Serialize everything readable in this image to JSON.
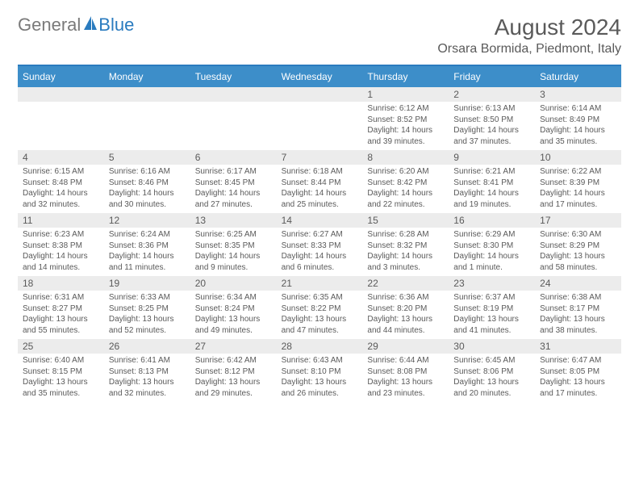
{
  "colors": {
    "brand_blue": "#2a7bbf",
    "header_blue": "#3d8ec9",
    "text_gray": "#5a5a5a",
    "logo_gray": "#7a7a7a",
    "daynum_bg": "#ececec",
    "white": "#ffffff"
  },
  "logo": {
    "part1": "General",
    "part2": "Blue"
  },
  "title": "August 2024",
  "location": "Orsara Bormida, Piedmont, Italy",
  "weekday_labels": [
    "Sunday",
    "Monday",
    "Tuesday",
    "Wednesday",
    "Thursday",
    "Friday",
    "Saturday"
  ],
  "calendar": {
    "type": "table",
    "cell_font_size_pt": 8,
    "daynum_font_size_pt": 9,
    "weekday_font_size_pt": 9,
    "weeks": [
      [
        {
          "num": "",
          "lines": []
        },
        {
          "num": "",
          "lines": []
        },
        {
          "num": "",
          "lines": []
        },
        {
          "num": "",
          "lines": []
        },
        {
          "num": "1",
          "lines": [
            "Sunrise: 6:12 AM",
            "Sunset: 8:52 PM",
            "Daylight: 14 hours and 39 minutes."
          ]
        },
        {
          "num": "2",
          "lines": [
            "Sunrise: 6:13 AM",
            "Sunset: 8:50 PM",
            "Daylight: 14 hours and 37 minutes."
          ]
        },
        {
          "num": "3",
          "lines": [
            "Sunrise: 6:14 AM",
            "Sunset: 8:49 PM",
            "Daylight: 14 hours and 35 minutes."
          ]
        }
      ],
      [
        {
          "num": "4",
          "lines": [
            "Sunrise: 6:15 AM",
            "Sunset: 8:48 PM",
            "Daylight: 14 hours and 32 minutes."
          ]
        },
        {
          "num": "5",
          "lines": [
            "Sunrise: 6:16 AM",
            "Sunset: 8:46 PM",
            "Daylight: 14 hours and 30 minutes."
          ]
        },
        {
          "num": "6",
          "lines": [
            "Sunrise: 6:17 AM",
            "Sunset: 8:45 PM",
            "Daylight: 14 hours and 27 minutes."
          ]
        },
        {
          "num": "7",
          "lines": [
            "Sunrise: 6:18 AM",
            "Sunset: 8:44 PM",
            "Daylight: 14 hours and 25 minutes."
          ]
        },
        {
          "num": "8",
          "lines": [
            "Sunrise: 6:20 AM",
            "Sunset: 8:42 PM",
            "Daylight: 14 hours and 22 minutes."
          ]
        },
        {
          "num": "9",
          "lines": [
            "Sunrise: 6:21 AM",
            "Sunset: 8:41 PM",
            "Daylight: 14 hours and 19 minutes."
          ]
        },
        {
          "num": "10",
          "lines": [
            "Sunrise: 6:22 AM",
            "Sunset: 8:39 PM",
            "Daylight: 14 hours and 17 minutes."
          ]
        }
      ],
      [
        {
          "num": "11",
          "lines": [
            "Sunrise: 6:23 AM",
            "Sunset: 8:38 PM",
            "Daylight: 14 hours and 14 minutes."
          ]
        },
        {
          "num": "12",
          "lines": [
            "Sunrise: 6:24 AM",
            "Sunset: 8:36 PM",
            "Daylight: 14 hours and 11 minutes."
          ]
        },
        {
          "num": "13",
          "lines": [
            "Sunrise: 6:25 AM",
            "Sunset: 8:35 PM",
            "Daylight: 14 hours and 9 minutes."
          ]
        },
        {
          "num": "14",
          "lines": [
            "Sunrise: 6:27 AM",
            "Sunset: 8:33 PM",
            "Daylight: 14 hours and 6 minutes."
          ]
        },
        {
          "num": "15",
          "lines": [
            "Sunrise: 6:28 AM",
            "Sunset: 8:32 PM",
            "Daylight: 14 hours and 3 minutes."
          ]
        },
        {
          "num": "16",
          "lines": [
            "Sunrise: 6:29 AM",
            "Sunset: 8:30 PM",
            "Daylight: 14 hours and 1 minute."
          ]
        },
        {
          "num": "17",
          "lines": [
            "Sunrise: 6:30 AM",
            "Sunset: 8:29 PM",
            "Daylight: 13 hours and 58 minutes."
          ]
        }
      ],
      [
        {
          "num": "18",
          "lines": [
            "Sunrise: 6:31 AM",
            "Sunset: 8:27 PM",
            "Daylight: 13 hours and 55 minutes."
          ]
        },
        {
          "num": "19",
          "lines": [
            "Sunrise: 6:33 AM",
            "Sunset: 8:25 PM",
            "Daylight: 13 hours and 52 minutes."
          ]
        },
        {
          "num": "20",
          "lines": [
            "Sunrise: 6:34 AM",
            "Sunset: 8:24 PM",
            "Daylight: 13 hours and 49 minutes."
          ]
        },
        {
          "num": "21",
          "lines": [
            "Sunrise: 6:35 AM",
            "Sunset: 8:22 PM",
            "Daylight: 13 hours and 47 minutes."
          ]
        },
        {
          "num": "22",
          "lines": [
            "Sunrise: 6:36 AM",
            "Sunset: 8:20 PM",
            "Daylight: 13 hours and 44 minutes."
          ]
        },
        {
          "num": "23",
          "lines": [
            "Sunrise: 6:37 AM",
            "Sunset: 8:19 PM",
            "Daylight: 13 hours and 41 minutes."
          ]
        },
        {
          "num": "24",
          "lines": [
            "Sunrise: 6:38 AM",
            "Sunset: 8:17 PM",
            "Daylight: 13 hours and 38 minutes."
          ]
        }
      ],
      [
        {
          "num": "25",
          "lines": [
            "Sunrise: 6:40 AM",
            "Sunset: 8:15 PM",
            "Daylight: 13 hours and 35 minutes."
          ]
        },
        {
          "num": "26",
          "lines": [
            "Sunrise: 6:41 AM",
            "Sunset: 8:13 PM",
            "Daylight: 13 hours and 32 minutes."
          ]
        },
        {
          "num": "27",
          "lines": [
            "Sunrise: 6:42 AM",
            "Sunset: 8:12 PM",
            "Daylight: 13 hours and 29 minutes."
          ]
        },
        {
          "num": "28",
          "lines": [
            "Sunrise: 6:43 AM",
            "Sunset: 8:10 PM",
            "Daylight: 13 hours and 26 minutes."
          ]
        },
        {
          "num": "29",
          "lines": [
            "Sunrise: 6:44 AM",
            "Sunset: 8:08 PM",
            "Daylight: 13 hours and 23 minutes."
          ]
        },
        {
          "num": "30",
          "lines": [
            "Sunrise: 6:45 AM",
            "Sunset: 8:06 PM",
            "Daylight: 13 hours and 20 minutes."
          ]
        },
        {
          "num": "31",
          "lines": [
            "Sunrise: 6:47 AM",
            "Sunset: 8:05 PM",
            "Daylight: 13 hours and 17 minutes."
          ]
        }
      ]
    ]
  }
}
